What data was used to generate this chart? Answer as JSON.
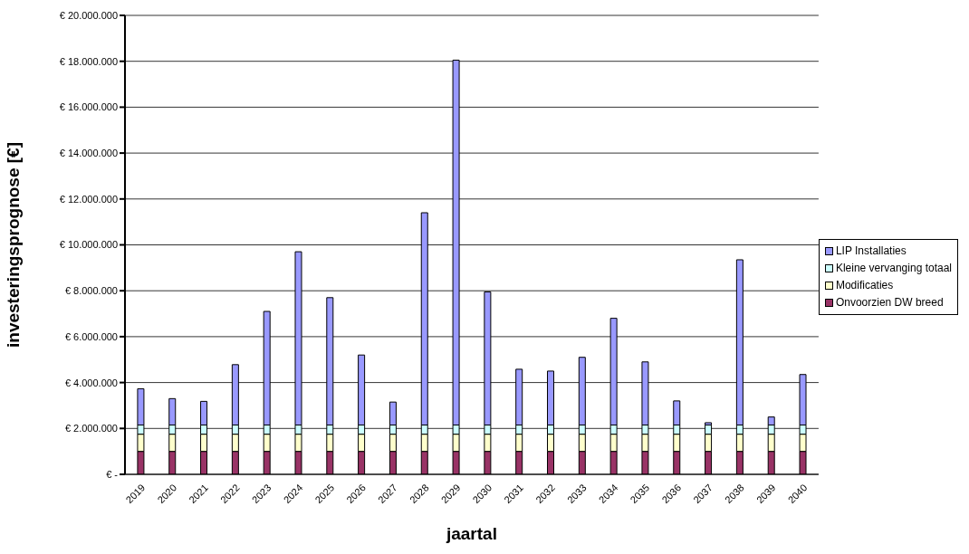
{
  "chart_data": {
    "type": "bar",
    "stacked": true,
    "xlabel": "jaartal",
    "ylabel": "investeringsprognose [€]",
    "categories": [
      "2019",
      "2020",
      "2021",
      "2022",
      "2023",
      "2024",
      "2025",
      "2026",
      "2027",
      "2028",
      "2029",
      "2030",
      "2031",
      "2032",
      "2033",
      "2034",
      "2035",
      "2036",
      "2037",
      "2038",
      "2039",
      "2040"
    ],
    "series": [
      {
        "name": "Onvoorzien DW breed",
        "color": "#993366",
        "values": [
          1000000,
          1000000,
          1000000,
          1000000,
          1000000,
          1000000,
          1000000,
          1000000,
          1000000,
          1000000,
          1000000,
          1000000,
          1000000,
          1000000,
          1000000,
          1000000,
          1000000,
          1000000,
          1000000,
          1000000,
          1000000,
          1000000
        ]
      },
      {
        "name": "Modificaties",
        "color": "#ffffcc",
        "values": [
          750000,
          750000,
          750000,
          750000,
          750000,
          750000,
          750000,
          750000,
          750000,
          750000,
          750000,
          750000,
          750000,
          750000,
          750000,
          750000,
          750000,
          750000,
          750000,
          750000,
          750000,
          750000
        ]
      },
      {
        "name": "Kleine vervanging totaal",
        "color": "#ccffff",
        "values": [
          400000,
          400000,
          400000,
          400000,
          400000,
          400000,
          400000,
          400000,
          400000,
          400000,
          400000,
          400000,
          400000,
          400000,
          400000,
          400000,
          400000,
          400000,
          400000,
          400000,
          400000,
          400000
        ]
      },
      {
        "name": "LIP Installaties",
        "color": "#9999ff",
        "values": [
          1580000,
          1150000,
          1030000,
          2630000,
          4950000,
          7550000,
          5550000,
          3050000,
          1000000,
          9250000,
          15900000,
          5800000,
          2430000,
          2350000,
          2950000,
          4650000,
          2750000,
          1050000,
          100000,
          7200000,
          350000,
          2200000
        ]
      }
    ],
    "ylim": [
      0,
      20000000
    ],
    "yticks": [
      {
        "value": 0,
        "label": "€ -"
      },
      {
        "value": 2000000,
        "label": "€ 2.000.000"
      },
      {
        "value": 4000000,
        "label": "€ 4.000.000"
      },
      {
        "value": 6000000,
        "label": "€ 6.000.000"
      },
      {
        "value": 8000000,
        "label": "€ 8.000.000"
      },
      {
        "value": 10000000,
        "label": "€ 10.000.000"
      },
      {
        "value": 12000000,
        "label": "€ 12.000.000"
      },
      {
        "value": 14000000,
        "label": "€ 14.000.000"
      },
      {
        "value": 16000000,
        "label": "€ 16.000.000"
      },
      {
        "value": 18000000,
        "label": "€ 18.000.000"
      },
      {
        "value": 20000000,
        "label": "€ 20.000.000"
      }
    ],
    "grid": "y",
    "legend": "right"
  }
}
